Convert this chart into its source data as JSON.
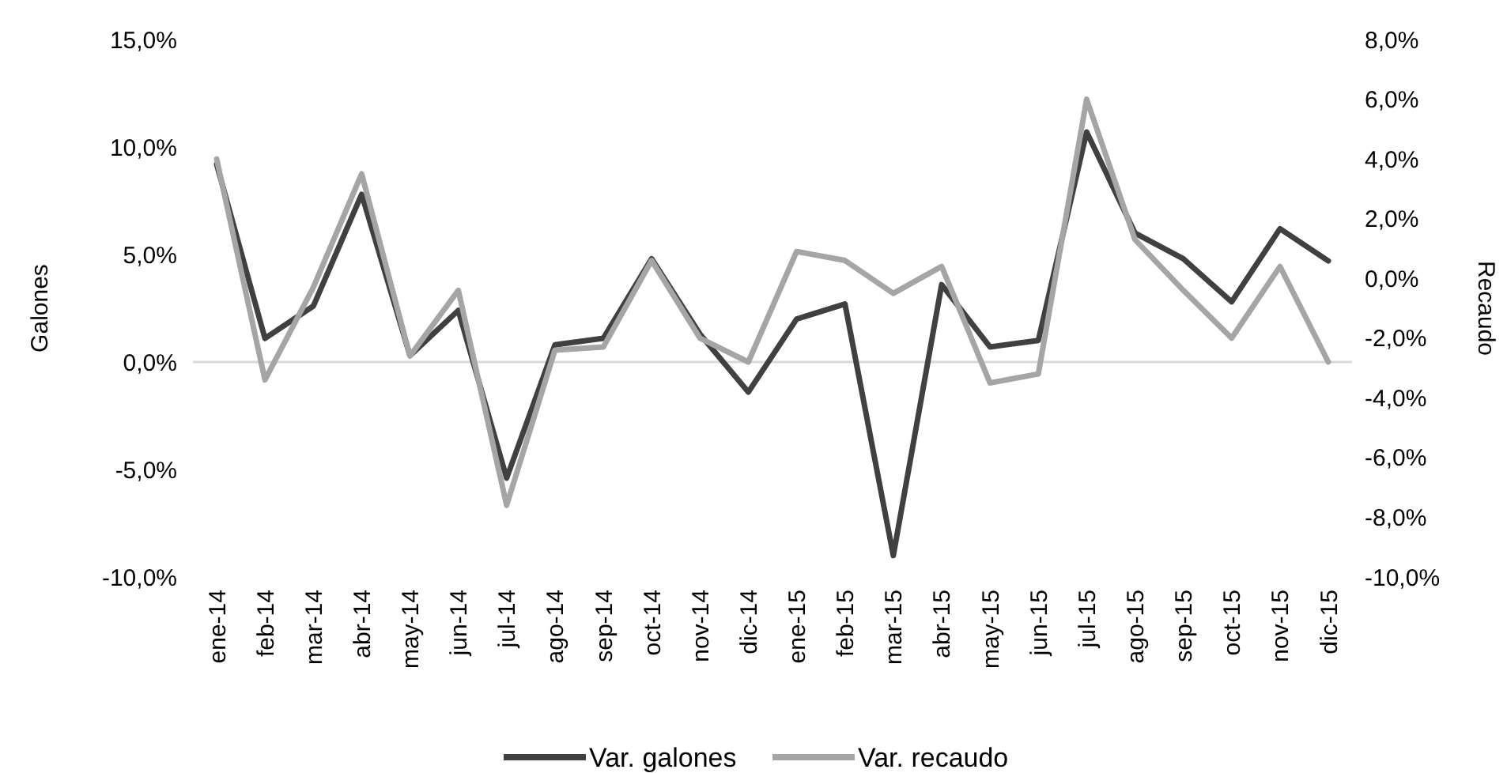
{
  "chart_data": {
    "type": "line",
    "ylabel": "Galones",
    "y2label": "Recaudo",
    "categories": [
      "ene-14",
      "feb-14",
      "mar-14",
      "abr-14",
      "may-14",
      "jun-14",
      "jul-14",
      "ago-14",
      "sep-14",
      "oct-14",
      "nov-14",
      "dic-14",
      "ene-15",
      "feb-15",
      "mar-15",
      "abr-15",
      "may-15",
      "jun-15",
      "jul-15",
      "ago-15",
      "sep-15",
      "oct-15",
      "nov-15",
      "dic-15"
    ],
    "series": [
      {
        "name": "Var. galones",
        "color": "#404040",
        "values": [
          9.2,
          1.1,
          2.6,
          7.8,
          0.3,
          2.4,
          -5.4,
          0.8,
          1.1,
          4.8,
          1.3,
          -1.4,
          2.0,
          2.7,
          -9.0,
          3.6,
          0.7,
          1.0,
          10.7,
          6.0,
          4.8,
          2.8,
          6.2,
          4.7
        ]
      },
      {
        "name": "Var. recaudo",
        "color": "#a5a5a5",
        "axis": "y2",
        "values": [
          4.0,
          -3.4,
          -0.3,
          3.5,
          -2.6,
          -0.4,
          -7.6,
          -2.4,
          -2.3,
          0.6,
          -2.0,
          -2.8,
          0.9,
          0.6,
          -0.5,
          0.4,
          -3.5,
          -3.2,
          6.0,
          1.3,
          -0.4,
          -2.0,
          0.4,
          -2.8
        ]
      }
    ],
    "ylim": [
      -10,
      15
    ],
    "yticks": [
      {
        "value": -10,
        "label": "-10,0%"
      },
      {
        "value": -5,
        "label": "-5,0%"
      },
      {
        "value": 0,
        "label": "0,0%"
      },
      {
        "value": 5,
        "label": "5,0%"
      },
      {
        "value": 10,
        "label": "10,0%"
      },
      {
        "value": 15,
        "label": "15,0%"
      }
    ],
    "y2lim": [
      -10,
      8
    ],
    "y2ticks": [
      {
        "value": -10,
        "label": "-10,0%"
      },
      {
        "value": -8,
        "label": "-8,0%"
      },
      {
        "value": -6,
        "label": "-6,0%"
      },
      {
        "value": -4,
        "label": "-4,0%"
      },
      {
        "value": -2,
        "label": "-2,0%"
      },
      {
        "value": 0,
        "label": "0,0%"
      },
      {
        "value": 2,
        "label": "2,0%"
      },
      {
        "value": 4,
        "label": "4,0%"
      },
      {
        "value": 6,
        "label": "6,0%"
      },
      {
        "value": 8,
        "label": "8,0%"
      }
    ],
    "ref_lines": [
      {
        "axis": "y",
        "value": 0,
        "color": "#d9d9d9"
      }
    ],
    "legend": "bottom",
    "marker": "none",
    "line_style": "solid"
  }
}
